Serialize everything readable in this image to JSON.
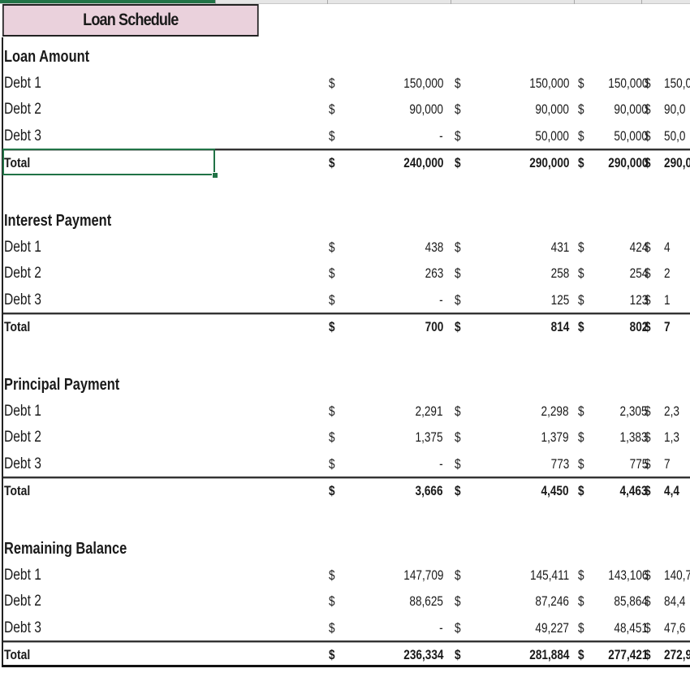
{
  "sheet": {
    "title": "Loan Schedule",
    "accent_color": "#217346",
    "title_fill": "#ead1dc",
    "currency_symbol": "$",
    "selected_cell": "Total (Loan Amount)"
  },
  "sections": [
    {
      "heading": "Loan Amount",
      "rows": [
        {
          "label": "Debt 1",
          "values": [
            "150,000",
            "150,000",
            "150,000",
            "150,0"
          ]
        },
        {
          "label": "Debt 2",
          "values": [
            "90,000",
            "90,000",
            "90,000",
            "90,0"
          ]
        },
        {
          "label": "Debt 3",
          "values": [
            "-",
            "50,000",
            "50,000",
            "50,0"
          ]
        }
      ],
      "total": {
        "label": "Total",
        "values": [
          "240,000",
          "290,000",
          "290,000",
          "290,0"
        ]
      }
    },
    {
      "heading": "Interest Payment",
      "rows": [
        {
          "label": "Debt 1",
          "values": [
            "438",
            "431",
            "424",
            "4"
          ]
        },
        {
          "label": "Debt 2",
          "values": [
            "263",
            "258",
            "254",
            "2"
          ]
        },
        {
          "label": "Debt 3",
          "values": [
            "-",
            "125",
            "123",
            "1"
          ]
        }
      ],
      "total": {
        "label": "Total",
        "values": [
          "700",
          "814",
          "802",
          "7"
        ]
      }
    },
    {
      "heading": "Principal Payment",
      "rows": [
        {
          "label": "Debt 1",
          "values": [
            "2,291",
            "2,298",
            "2,305",
            "2,3"
          ]
        },
        {
          "label": "Debt 2",
          "values": [
            "1,375",
            "1,379",
            "1,383",
            "1,3"
          ]
        },
        {
          "label": "Debt 3",
          "values": [
            "-",
            "773",
            "775",
            "7"
          ]
        }
      ],
      "total": {
        "label": "Total",
        "values": [
          "3,666",
          "4,450",
          "4,463",
          "4,4"
        ]
      }
    },
    {
      "heading": "Remaining Balance",
      "rows": [
        {
          "label": "Debt 1",
          "values": [
            "147,709",
            "145,411",
            "143,106",
            "140,7"
          ]
        },
        {
          "label": "Debt 2",
          "values": [
            "88,625",
            "87,246",
            "85,864",
            "84,4"
          ]
        },
        {
          "label": "Debt 3",
          "values": [
            "-",
            "49,227",
            "48,451",
            "47,6"
          ]
        }
      ],
      "total": {
        "label": "Total",
        "values": [
          "236,334",
          "281,884",
          "277,421",
          "272,9"
        ]
      }
    }
  ]
}
